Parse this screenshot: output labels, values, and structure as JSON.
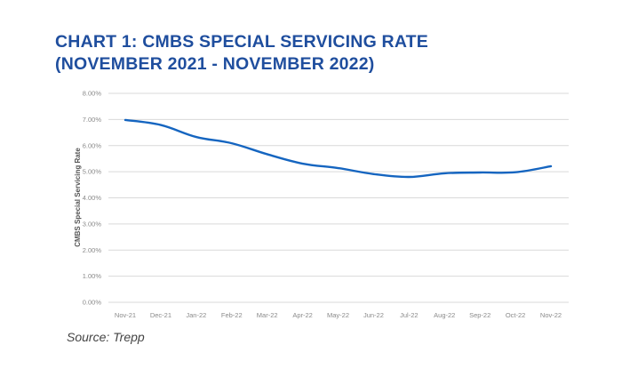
{
  "title_lines": [
    "CHART 1: CMBS SPECIAL SERVICING RATE",
    "(NOVEMBER 2021 - NOVEMBER 2022)"
  ],
  "source": "Source: Trepp",
  "colors": {
    "title": "#1f4e9e",
    "line": "#1565c0",
    "grid": "#d9d9d9"
  },
  "chart_data": {
    "type": "line",
    "title": "CHART 1: CMBS SPECIAL SERVICING RATE (NOVEMBER 2021 - NOVEMBER 2022)",
    "xlabel": "",
    "ylabel": "CMBS Special Servicing Rate",
    "categories": [
      "Nov-21",
      "Dec-21",
      "Jan-22",
      "Feb-22",
      "Mar-22",
      "Apr-22",
      "May-22",
      "Jun-22",
      "Jul-22",
      "Aug-22",
      "Sep-22",
      "Oct-22",
      "Nov-22"
    ],
    "series": [
      {
        "name": "CMBS Special Servicing Rate",
        "values": [
          6.98,
          6.79,
          6.33,
          6.09,
          5.67,
          5.31,
          5.14,
          4.91,
          4.8,
          4.94,
          4.97,
          4.98,
          5.21
        ]
      }
    ],
    "yticks": [
      0,
      1,
      2,
      3,
      4,
      5,
      6,
      7,
      8
    ],
    "ytick_labels": [
      "0.00%",
      "1.00%",
      "2.00%",
      "3.00%",
      "4.00%",
      "5.00%",
      "6.00%",
      "7.00%",
      "8.00%"
    ],
    "ylim": [
      0,
      8
    ],
    "grid": true,
    "legend": "none",
    "source": "Source: Trepp"
  }
}
